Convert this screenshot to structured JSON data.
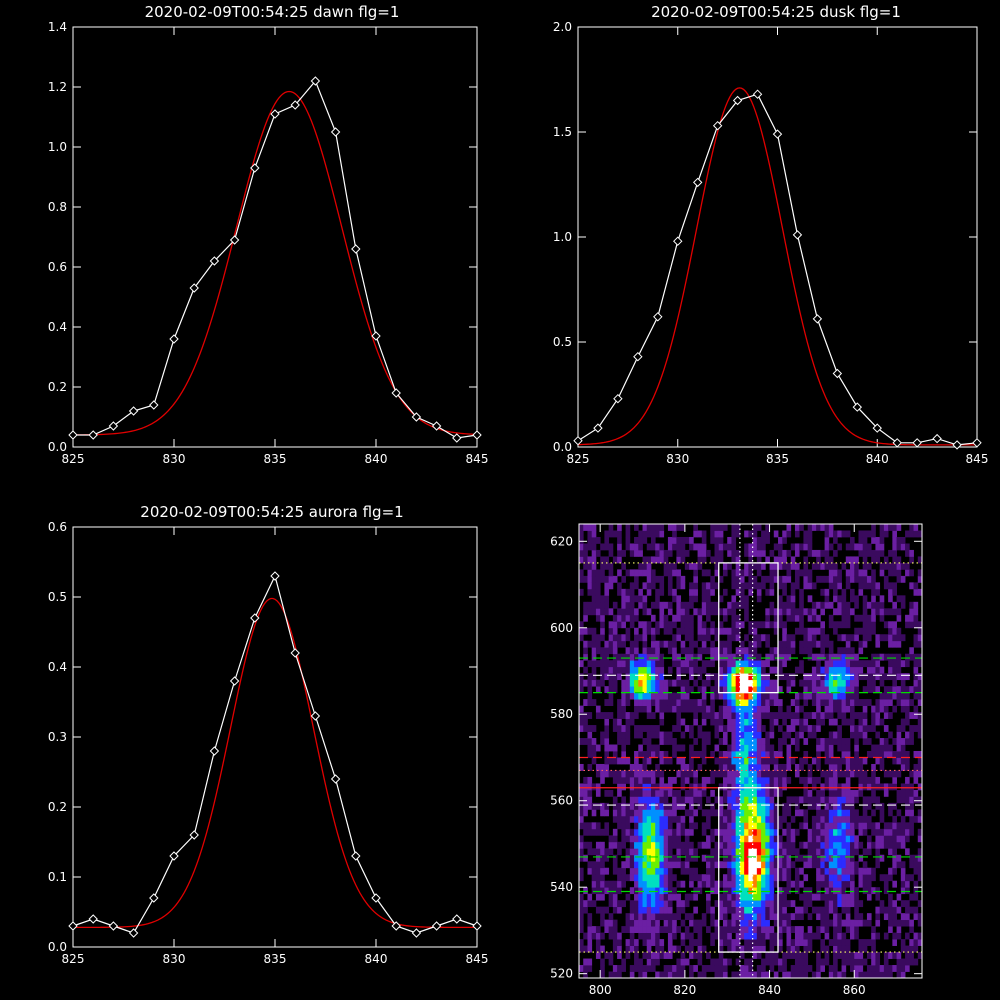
{
  "figure": {
    "background": "#000000",
    "foreground": "#ffffff"
  },
  "chart_data": [
    {
      "type": "line",
      "title": "2020-02-09T00:54:25 dawn flg=1",
      "xlim": [
        825,
        845
      ],
      "ylim": [
        0,
        1.4
      ],
      "xticks": [
        825,
        830,
        835,
        840,
        845
      ],
      "yticks": [
        0.0,
        0.2,
        0.4,
        0.6,
        0.8,
        1.0,
        1.2,
        1.4
      ],
      "ytick_labels": [
        "0.0",
        "0.2",
        "0.4",
        "0.6",
        "0.8",
        "1.0",
        "1.2",
        "1.4"
      ],
      "grid": false,
      "series": [
        {
          "kind": "data",
          "color": "#ffffff",
          "marker": "diamond",
          "x": [
            825,
            826,
            827,
            828,
            829,
            830,
            831,
            832,
            833,
            834,
            835,
            836,
            837,
            838,
            839,
            840,
            841,
            842,
            843,
            844,
            845
          ],
          "y": [
            0.04,
            0.04,
            0.07,
            0.12,
            0.14,
            0.36,
            0.53,
            0.62,
            0.69,
            0.93,
            1.11,
            1.14,
            1.22,
            1.05,
            0.66,
            0.37,
            0.18,
            0.1,
            0.07,
            0.03,
            0.04
          ]
        },
        {
          "kind": "fit",
          "color": "#e00000",
          "shape": "gaussian",
          "amplitude": 1.145,
          "center": 835.7,
          "sigma": 2.6,
          "baseline": 0.04
        }
      ]
    },
    {
      "type": "line",
      "title": "2020-02-09T00:54:25 dusk flg=1",
      "xlim": [
        825,
        845
      ],
      "ylim": [
        0,
        2.0
      ],
      "xticks": [
        825,
        830,
        835,
        840,
        845
      ],
      "yticks": [
        0.0,
        0.5,
        1.0,
        1.5,
        2.0
      ],
      "ytick_labels": [
        "0.0",
        "0.5",
        "1.0",
        "1.5",
        "2.0"
      ],
      "grid": false,
      "series": [
        {
          "kind": "data",
          "color": "#ffffff",
          "marker": "diamond",
          "x": [
            825,
            826,
            827,
            828,
            829,
            830,
            831,
            832,
            833,
            834,
            835,
            836,
            837,
            838,
            839,
            840,
            841,
            842,
            843,
            844,
            845
          ],
          "y": [
            0.03,
            0.09,
            0.23,
            0.43,
            0.62,
            0.98,
            1.26,
            1.53,
            1.65,
            1.68,
            1.49,
            1.01,
            0.61,
            0.35,
            0.19,
            0.09,
            0.02,
            0.02,
            0.04,
            0.01,
            0.02
          ]
        },
        {
          "kind": "fit",
          "color": "#e00000",
          "shape": "gaussian",
          "amplitude": 1.7,
          "center": 833.1,
          "sigma": 2.15,
          "baseline": 0.01
        }
      ]
    },
    {
      "type": "line",
      "title": "2020-02-09T00:54:25 aurora flg=1",
      "xlim": [
        825,
        845
      ],
      "ylim": [
        0,
        0.6
      ],
      "xticks": [
        825,
        830,
        835,
        840,
        845
      ],
      "yticks": [
        0.0,
        0.1,
        0.2,
        0.3,
        0.4,
        0.5,
        0.6
      ],
      "ytick_labels": [
        "0.0",
        "0.1",
        "0.2",
        "0.3",
        "0.4",
        "0.5",
        "0.6"
      ],
      "grid": false,
      "series": [
        {
          "kind": "data",
          "color": "#ffffff",
          "marker": "diamond",
          "x": [
            825,
            826,
            827,
            828,
            829,
            830,
            831,
            832,
            833,
            834,
            835,
            836,
            837,
            838,
            839,
            840,
            841,
            842,
            843,
            844,
            845
          ],
          "y": [
            0.03,
            0.04,
            0.03,
            0.02,
            0.07,
            0.13,
            0.16,
            0.28,
            0.38,
            0.47,
            0.53,
            0.42,
            0.33,
            0.24,
            0.13,
            0.07,
            0.03,
            0.02,
            0.03,
            0.04,
            0.03
          ]
        },
        {
          "kind": "fit",
          "color": "#e00000",
          "shape": "gaussian",
          "amplitude": 0.47,
          "center": 834.85,
          "sigma": 2.05,
          "baseline": 0.028
        }
      ]
    },
    {
      "type": "heatmap",
      "title": "",
      "xlim": [
        795,
        876
      ],
      "ylim": [
        519,
        624
      ],
      "xticks": [
        800,
        820,
        840,
        860
      ],
      "yticks": [
        520,
        540,
        560,
        580,
        600,
        620
      ],
      "colormap": [
        "#000000",
        "#3a0a5e",
        "#6b1fa3",
        "#2b2cff",
        "#0090ff",
        "#00e0c0",
        "#6af000",
        "#ffff00",
        "#ff8000",
        "#ff0000",
        "#ffffff"
      ],
      "grid": false,
      "blobs": [
        {
          "x": 810,
          "y": 588,
          "sx": 2.2,
          "sy": 3.0,
          "amp": 0.72
        },
        {
          "x": 834,
          "y": 587,
          "sx": 2.6,
          "sy": 3.2,
          "amp": 1.0
        },
        {
          "x": 856,
          "y": 588,
          "sx": 2.5,
          "sy": 3.0,
          "amp": 0.45
        },
        {
          "x": 812,
          "y": 548,
          "sx": 2.4,
          "sy": 9.0,
          "amp": 0.55
        },
        {
          "x": 836,
          "y": 548,
          "sx": 2.8,
          "sy": 10.0,
          "amp": 0.85
        },
        {
          "x": 856,
          "y": 550,
          "sx": 2.5,
          "sy": 8.0,
          "amp": 0.3
        },
        {
          "x": 834,
          "y": 572,
          "sx": 2.0,
          "sy": 8.0,
          "amp": 0.35
        },
        {
          "x": 836,
          "y": 545,
          "sx": 1.2,
          "sy": 2.0,
          "amp": 0.35
        }
      ],
      "boxes": [
        {
          "x0": 828,
          "x1": 842,
          "y0": 585,
          "y1": 615,
          "color": "#ffffff"
        },
        {
          "x0": 828,
          "x1": 842,
          "y0": 525,
          "y1": 563,
          "color": "#ffffff"
        }
      ],
      "hlines": [
        {
          "y": 615,
          "color": "#ffff66",
          "style": "dotted"
        },
        {
          "y": 525,
          "color": "#ffff66",
          "style": "dotted"
        },
        {
          "y": 593,
          "color": "#00dd00",
          "style": "dashed"
        },
        {
          "y": 585,
          "color": "#00dd00",
          "style": "dashed"
        },
        {
          "y": 547,
          "color": "#00dd00",
          "style": "dashed"
        },
        {
          "y": 539,
          "color": "#00dd00",
          "style": "dashed"
        },
        {
          "y": 589,
          "color": "#ffffff",
          "style": "dashed"
        },
        {
          "y": 559,
          "color": "#ffffff",
          "style": "dashed"
        },
        {
          "y": 570,
          "color": "#ff2020",
          "style": "dashed"
        },
        {
          "y": 563,
          "color": "#ff2020",
          "style": "solid"
        },
        {
          "y": 567,
          "color": "#ff6060",
          "style": "dotted"
        }
      ],
      "vlines": [
        {
          "x": 833,
          "color": "#ffffff",
          "style": "dotted"
        },
        {
          "x": 836,
          "color": "#ffffff",
          "style": "dotted"
        }
      ]
    }
  ]
}
